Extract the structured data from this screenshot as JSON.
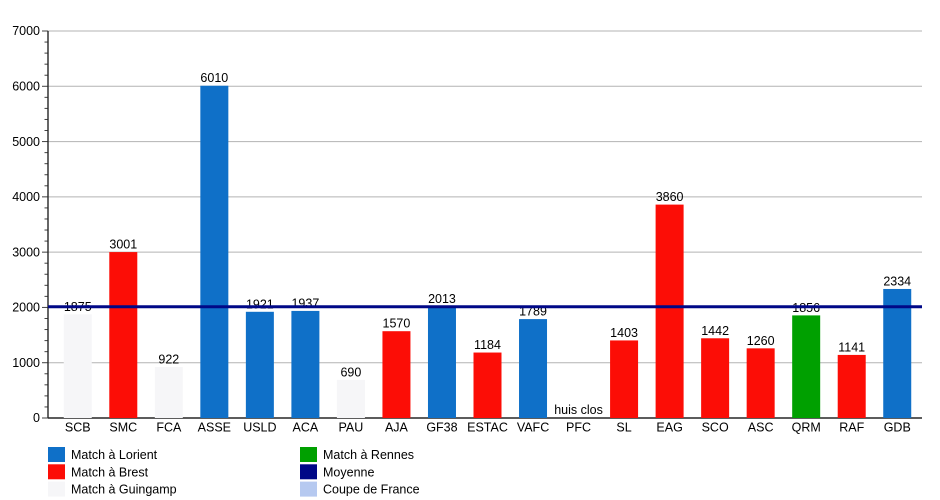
{
  "chart_data": {
    "type": "bar",
    "title": "",
    "categories": [
      "SCB",
      "SMC",
      "FCA",
      "ASSE",
      "USLD",
      "ACA",
      "PAU",
      "AJA",
      "GF38",
      "ESTAC",
      "VAFC",
      "PFC",
      "SL",
      "EAG",
      "SCO",
      "ASC",
      "QRM",
      "RAF",
      "GDB"
    ],
    "values": [
      1875,
      3001,
      922,
      6010,
      1921,
      1937,
      690,
      1570,
      2013,
      1184,
      1789,
      null,
      1403,
      3860,
      1442,
      1260,
      1856,
      1141,
      2334
    ],
    "series_keys": [
      "guingamp",
      "brest",
      "guingamp",
      "lorient",
      "lorient",
      "lorient",
      "guingamp",
      "brest",
      "lorient",
      "brest",
      "lorient",
      null,
      "brest",
      "brest",
      "brest",
      "brest",
      "rennes",
      "brest",
      "lorient"
    ],
    "annotations": [
      {
        "category": "PFC",
        "text": "huis clos"
      }
    ],
    "average_line": {
      "label": "Moyenne",
      "value": 2012
    },
    "ylim": [
      0,
      7000
    ],
    "ytick_step": 1000,
    "yminor_step": 200,
    "ytick_labels": [
      "0",
      "1000",
      "2000",
      "3000",
      "4000",
      "5000",
      "6000",
      "7000"
    ],
    "grid": true,
    "legend_position": "bottom",
    "legend": [
      {
        "label": "Match à Lorient",
        "key": "lorient",
        "color": "#0F70C8"
      },
      {
        "label": "Match à Brest",
        "key": "brest",
        "color": "#FC0D06"
      },
      {
        "label": "Match à Guingamp",
        "key": "guingamp",
        "color": "#F6F6F8"
      },
      {
        "label": "Match à Rennes",
        "key": "rennes",
        "color": "#00A000"
      },
      {
        "label": "Moyenne",
        "key": "moyenne",
        "color": "#000887"
      },
      {
        "label": "Coupe de France",
        "key": "coupe",
        "color": "#B6C9F0"
      }
    ],
    "colors": {
      "grid": "#B3B3B3",
      "axis": "#262626",
      "tick": "#404040",
      "label_text": "#000000",
      "average_line": "#000887"
    }
  }
}
